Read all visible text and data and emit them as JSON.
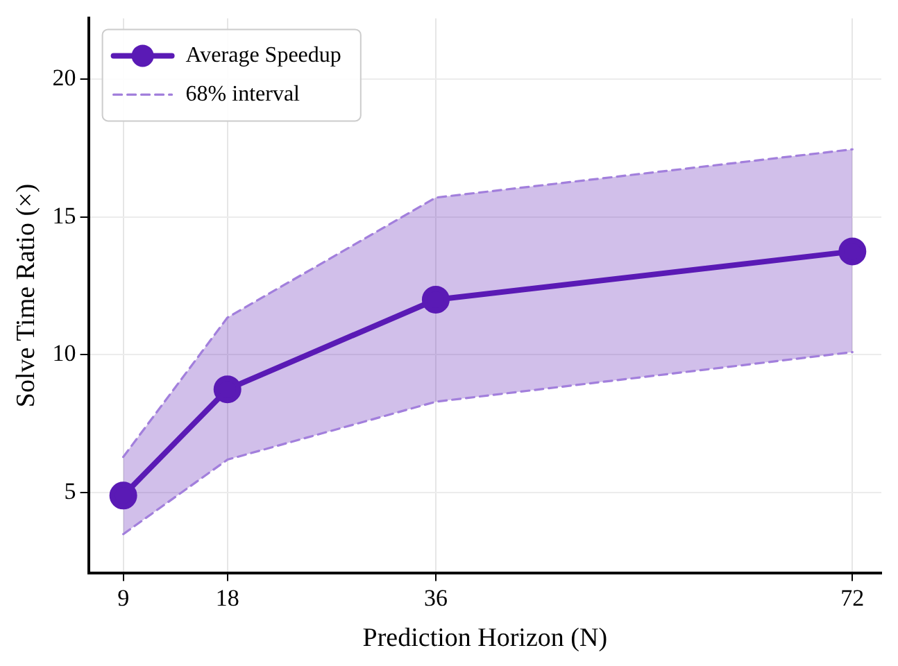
{
  "chart_data": {
    "type": "line",
    "xlabel": "Prediction Horizon (N)",
    "ylabel": "Solve Time Ratio (×)",
    "x": [
      9,
      18,
      36,
      72
    ],
    "xlim": [
      6,
      74.5
    ],
    "xticks": [
      9,
      18,
      36,
      72
    ],
    "ylim": [
      2.1,
      22.2
    ],
    "yticks": [
      5,
      10,
      15,
      20
    ],
    "series": [
      {
        "name": "Average Speedup",
        "color": "#5a1ab5",
        "values": [
          4.9,
          8.75,
          12.0,
          13.75
        ],
        "lower": [
          3.5,
          6.2,
          8.3,
          10.1
        ],
        "upper": [
          6.3,
          11.35,
          15.7,
          17.45
        ],
        "marker": "circle",
        "line_style": "solid"
      },
      {
        "name": "68% interval",
        "color": "#a27fdc",
        "values": [
          6.3,
          11.35,
          15.7,
          17.45
        ],
        "marker": "none",
        "line_style": "dashed"
      },
      {
        "color": "#a27fdc",
        "values": [
          3.5,
          6.2,
          8.3,
          10.1
        ],
        "marker": "none",
        "line_style": "dashed"
      }
    ],
    "grid": true,
    "legend": "top left"
  }
}
